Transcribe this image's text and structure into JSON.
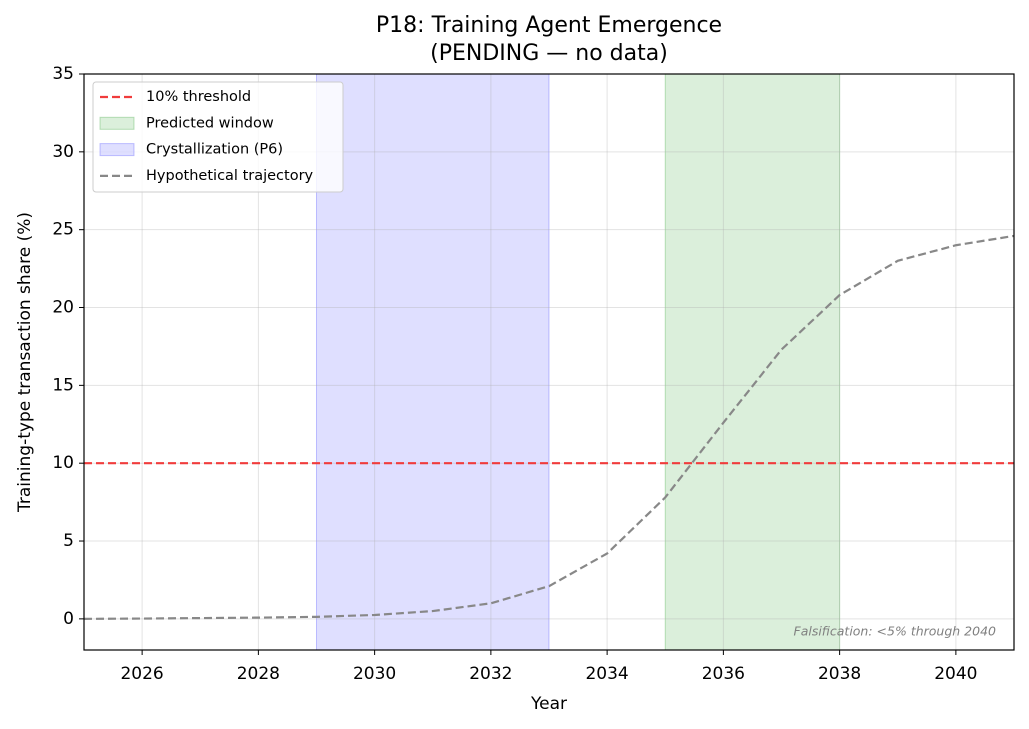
{
  "chart_data": {
    "type": "line",
    "title": "P18: Training Agent Emergence",
    "subtitle": "(PENDING — no data)",
    "x_label": "Year",
    "y_label": "Training-type transaction share (%)",
    "x": [
      2025,
      2026,
      2027,
      2028,
      2029,
      2030,
      2031,
      2032,
      2033,
      2034,
      2035,
      2036,
      2037,
      2038,
      2039,
      2040,
      2041
    ],
    "series": [
      {
        "name": "Hypothetical trajectory",
        "color": "#888888",
        "values": [
          0.0,
          0.02,
          0.05,
          0.08,
          0.13,
          0.25,
          0.5,
          1.0,
          2.1,
          4.2,
          7.8,
          12.6,
          17.3,
          20.8,
          23.0,
          24.0,
          24.6
        ]
      }
    ],
    "reference_lines": [
      {
        "name": "10% threshold",
        "value": 10,
        "color": "#f03c3c"
      }
    ],
    "spans": [
      {
        "name": "Predicted window",
        "start": 2035,
        "end": 2038,
        "color": "#2ca02c"
      },
      {
        "name": "Crystallization (P6)",
        "start": 2029,
        "end": 2033,
        "color": "#4040ff"
      }
    ],
    "annotation": "Falsification: <5% through 2040",
    "xlim": [
      2025,
      2041
    ],
    "ylim": [
      -2,
      35
    ],
    "xticks": [
      2026,
      2028,
      2030,
      2032,
      2034,
      2036,
      2038,
      2040
    ],
    "yticks": [
      0,
      5,
      10,
      15,
      20,
      25,
      30,
      35
    ],
    "grid": true,
    "legend": "upper left"
  }
}
